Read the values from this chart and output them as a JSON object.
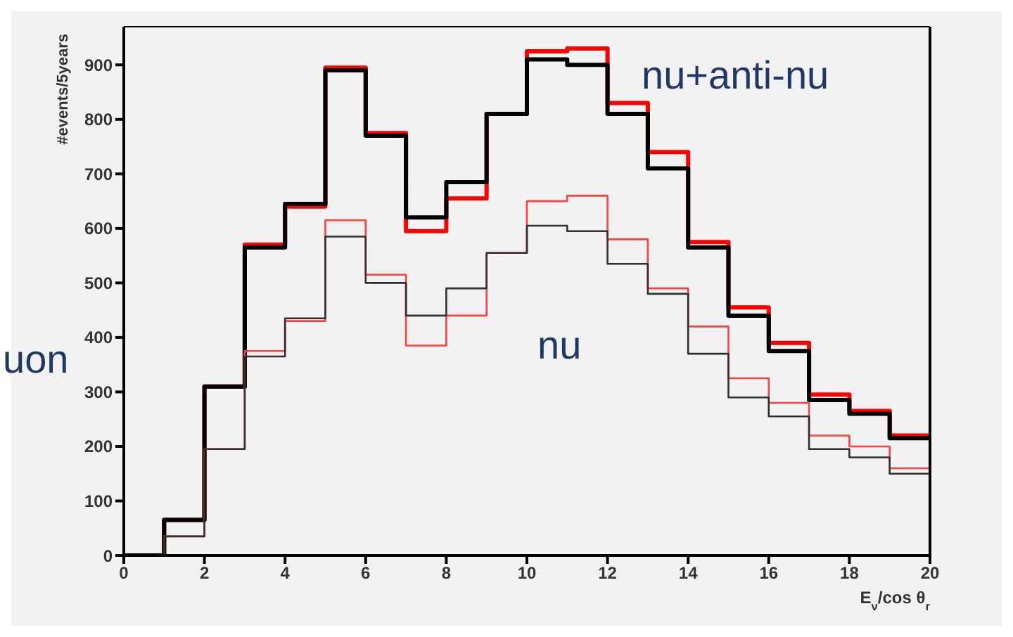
{
  "chart_data": {
    "type": "histogram",
    "xlabel": "E$_{ν}$/cos θ$_{r}$",
    "ylabel": "#events/5years",
    "bins": [
      0,
      1,
      2,
      3,
      4,
      5,
      6,
      7,
      8,
      9,
      10,
      11,
      12,
      13,
      14,
      15,
      16,
      17,
      18,
      19,
      20
    ],
    "series": [
      {
        "color": "#ff0000",
        "values": [
          0,
          65,
          310,
          570,
          640,
          895,
          775,
          595,
          655,
          810,
          925,
          930,
          830,
          740,
          575,
          455,
          390,
          295,
          265,
          220
        ]
      },
      {
        "color": "#000000",
        "values": [
          0,
          65,
          310,
          565,
          645,
          890,
          770,
          620,
          685,
          810,
          910,
          900,
          810,
          710,
          565,
          440,
          375,
          285,
          260,
          215
        ]
      },
      {
        "color": "#ff4040",
        "values": [
          0,
          35,
          195,
          375,
          430,
          615,
          515,
          385,
          440,
          555,
          650,
          660,
          580,
          490,
          420,
          325,
          280,
          220,
          200,
          160
        ]
      },
      {
        "color": "#303030",
        "values": [
          0,
          35,
          195,
          365,
          435,
          585,
          500,
          440,
          490,
          555,
          605,
          595,
          535,
          480,
          370,
          290,
          255,
          195,
          180,
          150
        ]
      }
    ],
    "xlim": [
      0,
      20
    ],
    "xticks": [
      0,
      2,
      4,
      6,
      8,
      10,
      12,
      14,
      16,
      18,
      20
    ],
    "ylim": [
      0,
      970
    ],
    "yticks": [
      0,
      100,
      200,
      300,
      400,
      500,
      600,
      700,
      800,
      900
    ],
    "grid": false,
    "annotations": [
      "nu+anti-nu",
      "nu",
      "uon"
    ]
  }
}
